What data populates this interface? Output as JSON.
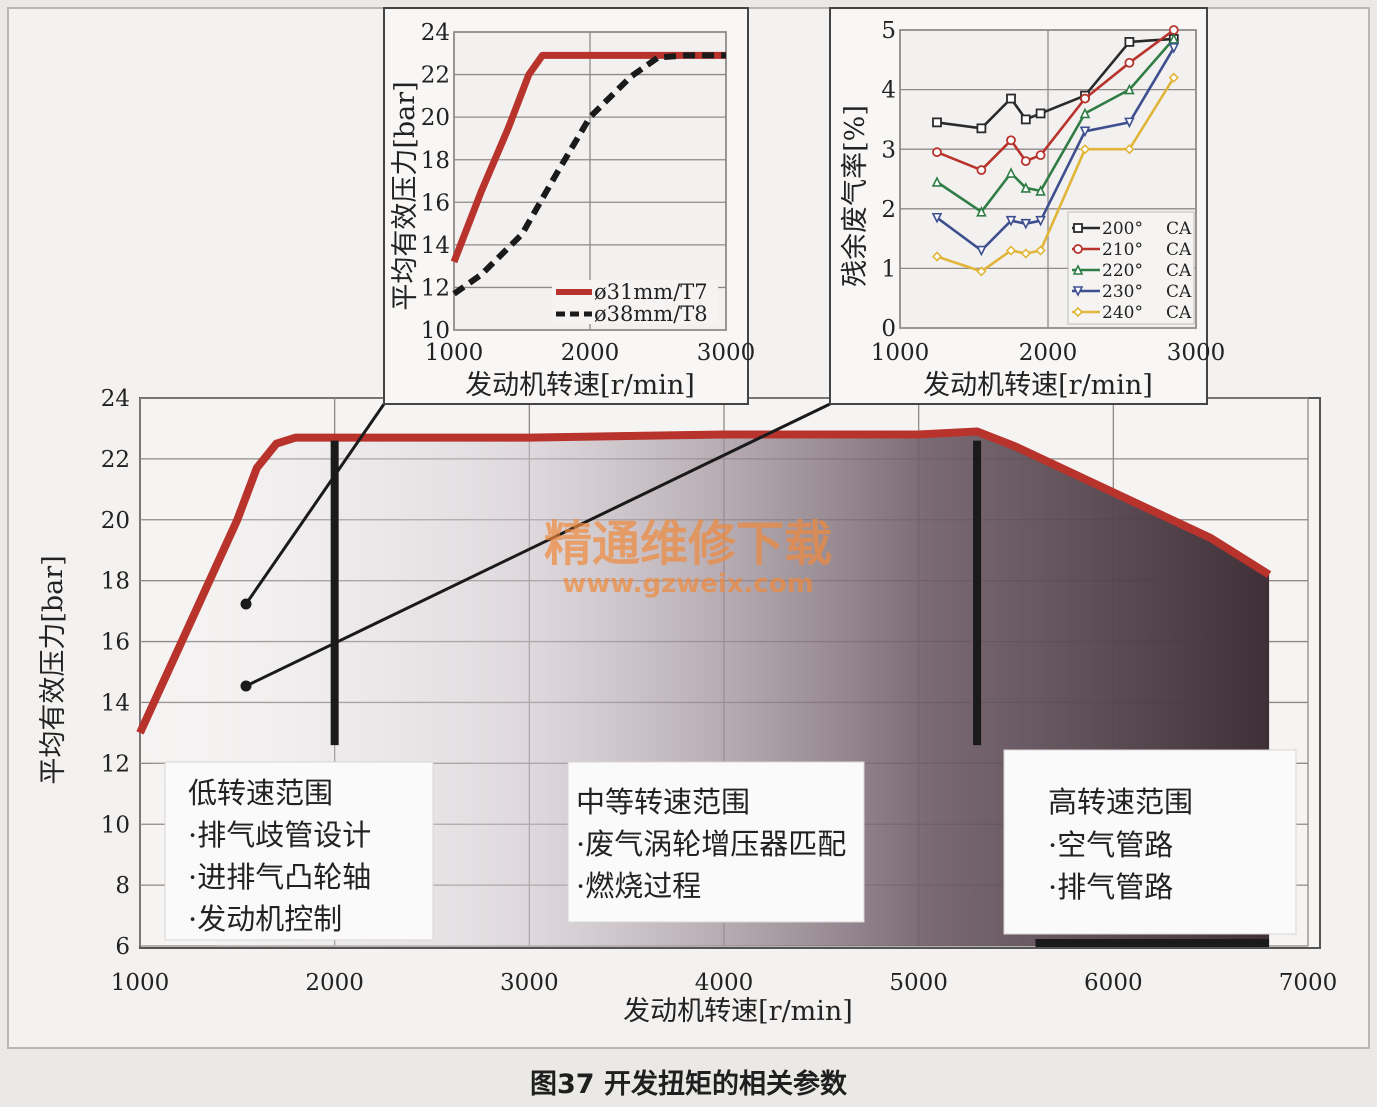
{
  "caption": "图37 开发扭矩的相关参数",
  "watermark": {
    "line1": "精通维修下载",
    "line2": "www.gzweix.com",
    "color": "#f08a3c"
  },
  "colors": {
    "red_curve": "#b8332c",
    "black": "#1a1a1a",
    "grid": "#8e8a88",
    "shade_dark": "#4b3b42"
  },
  "chart_data": [
    {
      "id": "main",
      "type": "area",
      "title": "",
      "xlabel": "发动机转速[r/min]",
      "ylabel": "平均有效压力[bar]",
      "xlim": [
        1000,
        7000
      ],
      "ylim": [
        6,
        24
      ],
      "xticks": [
        1000,
        2000,
        3000,
        4000,
        5000,
        6000,
        7000
      ],
      "yticks": [
        6,
        8,
        10,
        12,
        14,
        16,
        18,
        20,
        22,
        24
      ],
      "grid": true,
      "series": [
        {
          "x": [
            1000,
            1250,
            1500,
            1600,
            1700,
            1800,
            2000,
            3000,
            4000,
            5000,
            5300,
            5500,
            6000,
            6500,
            6800
          ],
          "y": [
            13,
            16.5,
            20,
            21.7,
            22.5,
            22.7,
            22.7,
            22.7,
            22.8,
            22.8,
            22.9,
            22.4,
            20.9,
            19.4,
            18.2
          ]
        }
      ],
      "dividers": [
        2000,
        5300
      ],
      "regions": [
        {
          "title": "低转速范围",
          "items": [
            "·排气歧管设计",
            "·进排气凸轮轴",
            "·发动机控制"
          ]
        },
        {
          "title": "中等转速范围",
          "items": [
            "·废气涡轮增压器匹配",
            "·燃烧过程"
          ]
        },
        {
          "title": "高转速范围",
          "items": [
            "·空气管路",
            "·排气管路"
          ]
        }
      ]
    },
    {
      "id": "inset-left",
      "type": "line",
      "title": "",
      "xlabel": "发动机转速[r/min]",
      "ylabel": "平均有效压力[bar]",
      "xlim": [
        1000,
        3000
      ],
      "ylim": [
        10,
        24
      ],
      "xticks": [
        1000,
        2000,
        3000
      ],
      "yticks": [
        10,
        12,
        14,
        16,
        18,
        20,
        22,
        24
      ],
      "grid": true,
      "legend": "bottom-right",
      "series": [
        {
          "name": "ø31mm/T7",
          "style": "solid",
          "x": [
            1000,
            1200,
            1400,
            1550,
            1650,
            2000,
            2500,
            3000
          ],
          "y": [
            13.2,
            16.5,
            19.5,
            22.0,
            22.9,
            22.9,
            22.9,
            22.9
          ]
        },
        {
          "name": "ø38mm/T8",
          "style": "dashed",
          "x": [
            1000,
            1200,
            1500,
            1750,
            2000,
            2300,
            2500,
            2700,
            3000
          ],
          "y": [
            11.7,
            12.6,
            14.5,
            17.3,
            20.0,
            21.9,
            22.8,
            22.9,
            22.9
          ]
        }
      ]
    },
    {
      "id": "inset-right",
      "type": "line",
      "title": "",
      "xlabel": "发动机转速[r/min]",
      "ylabel": "残余废气率[%]",
      "xlim": [
        1000,
        3000
      ],
      "ylim": [
        0,
        5
      ],
      "xticks": [
        1000,
        2000,
        3000
      ],
      "yticks": [
        0,
        1,
        2,
        3,
        4,
        5
      ],
      "grid": true,
      "legend": "right",
      "series": [
        {
          "name": "200°",
          "unit": "CA",
          "color": "#2a2a2a",
          "marker": "square",
          "x": [
            1250,
            1550,
            1750,
            1850,
            1950,
            2250,
            2550,
            2850
          ],
          "y": [
            3.45,
            3.35,
            3.85,
            3.5,
            3.6,
            3.9,
            4.8,
            4.85
          ]
        },
        {
          "name": "210°",
          "unit": "CA",
          "color": "#b8332c",
          "marker": "circle",
          "x": [
            1250,
            1550,
            1750,
            1850,
            1950,
            2250,
            2550,
            2850
          ],
          "y": [
            2.95,
            2.65,
            3.15,
            2.8,
            2.9,
            3.85,
            4.45,
            5.0
          ]
        },
        {
          "name": "220°",
          "unit": "CA",
          "color": "#2f7d45",
          "marker": "triangle",
          "x": [
            1250,
            1550,
            1750,
            1850,
            1950,
            2250,
            2550,
            2850
          ],
          "y": [
            2.45,
            1.95,
            2.6,
            2.35,
            2.3,
            3.6,
            4.0,
            4.85
          ]
        },
        {
          "name": "230°",
          "unit": "CA",
          "color": "#3e4f8f",
          "marker": "down-triangle",
          "x": [
            1250,
            1550,
            1750,
            1850,
            1950,
            2250,
            2550,
            2850
          ],
          "y": [
            1.85,
            1.3,
            1.8,
            1.75,
            1.8,
            3.3,
            3.45,
            4.7
          ]
        },
        {
          "name": "240°",
          "unit": "CA",
          "color": "#e0b53a",
          "marker": "diamond",
          "x": [
            1250,
            1550,
            1750,
            1850,
            1950,
            2250,
            2550,
            2850
          ],
          "y": [
            1.2,
            0.95,
            1.3,
            1.25,
            1.3,
            3.0,
            3.0,
            4.2
          ]
        }
      ]
    }
  ]
}
